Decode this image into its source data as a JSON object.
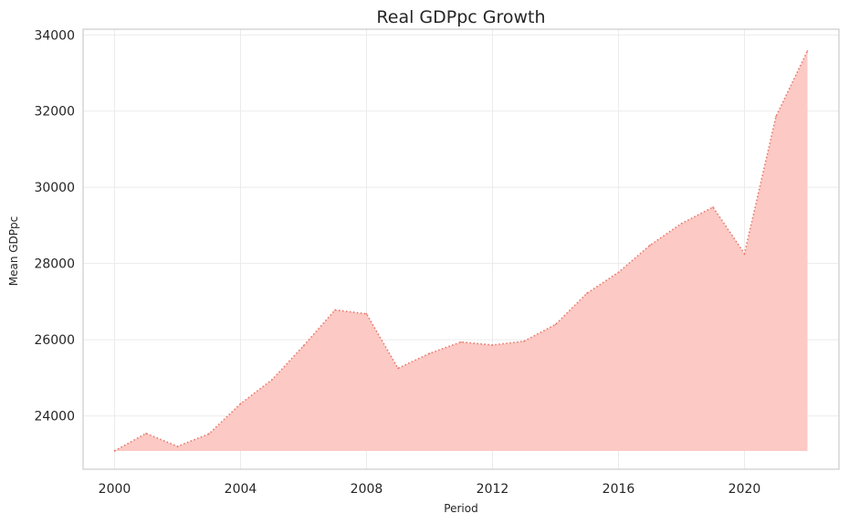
{
  "chart_data": {
    "type": "area",
    "title": "Real GDPpc Growth",
    "xlabel": "Period",
    "ylabel": "Mean GDPpc",
    "x": [
      2000,
      2001,
      2002,
      2003,
      2004,
      2005,
      2006,
      2007,
      2008,
      2009,
      2010,
      2011,
      2012,
      2013,
      2014,
      2015,
      2016,
      2017,
      2018,
      2019,
      2020,
      2021,
      2022
    ],
    "series": [
      {
        "values": [
          23080,
          23540,
          23200,
          23530,
          24320,
          24950,
          25840,
          26780,
          26680,
          25250,
          25640,
          25940,
          25860,
          25960,
          26400,
          27220,
          27770,
          28480,
          29050,
          29480,
          28260,
          31860,
          33580
        ]
      }
    ],
    "xlim": [
      1999.0,
      2023.0
    ],
    "ylim": [
      22600,
      34150
    ],
    "xticks": [
      2000,
      2004,
      2008,
      2012,
      2016,
      2020
    ],
    "yticks": [
      24000,
      26000,
      28000,
      30000,
      32000,
      34000
    ],
    "grid": true,
    "colors": {
      "fill": "#fcc9c4",
      "line": "#e8776a",
      "grid": "#ebebeb",
      "frame": "#cccccc"
    }
  }
}
